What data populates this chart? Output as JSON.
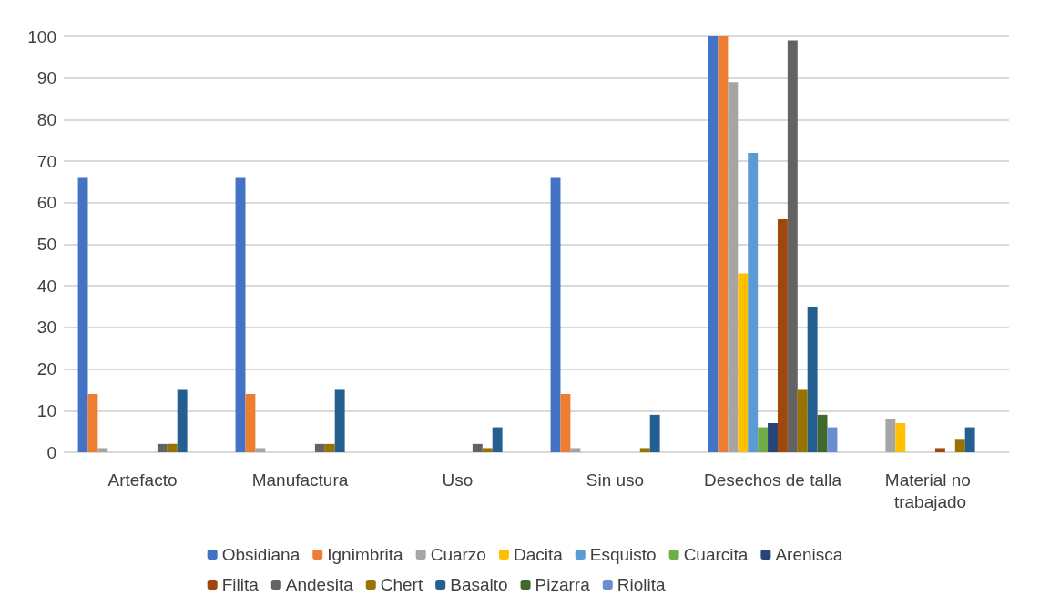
{
  "chart_data": {
    "type": "bar",
    "categories": [
      "Artefacto",
      "Manufactura",
      "Uso",
      "Sin uso",
      "Desechos de talla",
      "Material no trabajado"
    ],
    "ylim": [
      0,
      100
    ],
    "yticks": [
      0,
      10,
      20,
      30,
      40,
      50,
      60,
      70,
      80,
      90,
      100
    ],
    "grid": "y",
    "legend": "bottom",
    "series": [
      {
        "name": "Obsidiana",
        "color": "#4472c4",
        "values": [
          66,
          66,
          null,
          66,
          100,
          null
        ]
      },
      {
        "name": "Ignimbrita",
        "color": "#ed7d31",
        "values": [
          14,
          14,
          null,
          14,
          100,
          null
        ]
      },
      {
        "name": "Cuarzo",
        "color": "#a5a5a5",
        "values": [
          1,
          1,
          null,
          1,
          89,
          8
        ]
      },
      {
        "name": "Dacita",
        "color": "#ffc000",
        "values": [
          null,
          null,
          null,
          null,
          43,
          7
        ]
      },
      {
        "name": "Esquisto",
        "color": "#5b9bd5",
        "values": [
          null,
          null,
          null,
          null,
          72,
          null
        ]
      },
      {
        "name": "Cuarcita",
        "color": "#70ad47",
        "values": [
          null,
          null,
          null,
          null,
          6,
          null
        ]
      },
      {
        "name": "Arenisca",
        "color": "#264478",
        "values": [
          null,
          null,
          null,
          null,
          7,
          null
        ]
      },
      {
        "name": "Filita",
        "color": "#9e480e",
        "values": [
          null,
          null,
          null,
          null,
          56,
          1
        ]
      },
      {
        "name": "Andesita",
        "color": "#636363",
        "values": [
          2,
          2,
          2,
          null,
          99,
          null
        ]
      },
      {
        "name": "Chert",
        "color": "#997300",
        "values": [
          2,
          2,
          1,
          1,
          15,
          3
        ]
      },
      {
        "name": "Basalto",
        "color": "#255e91",
        "values": [
          15,
          15,
          6,
          9,
          35,
          6
        ]
      },
      {
        "name": "Pizarra",
        "color": "#43682b",
        "values": [
          null,
          null,
          null,
          null,
          9,
          null
        ]
      },
      {
        "name": "Riolita",
        "color": "#698ed0",
        "values": [
          null,
          null,
          null,
          null,
          6,
          null
        ]
      }
    ]
  }
}
